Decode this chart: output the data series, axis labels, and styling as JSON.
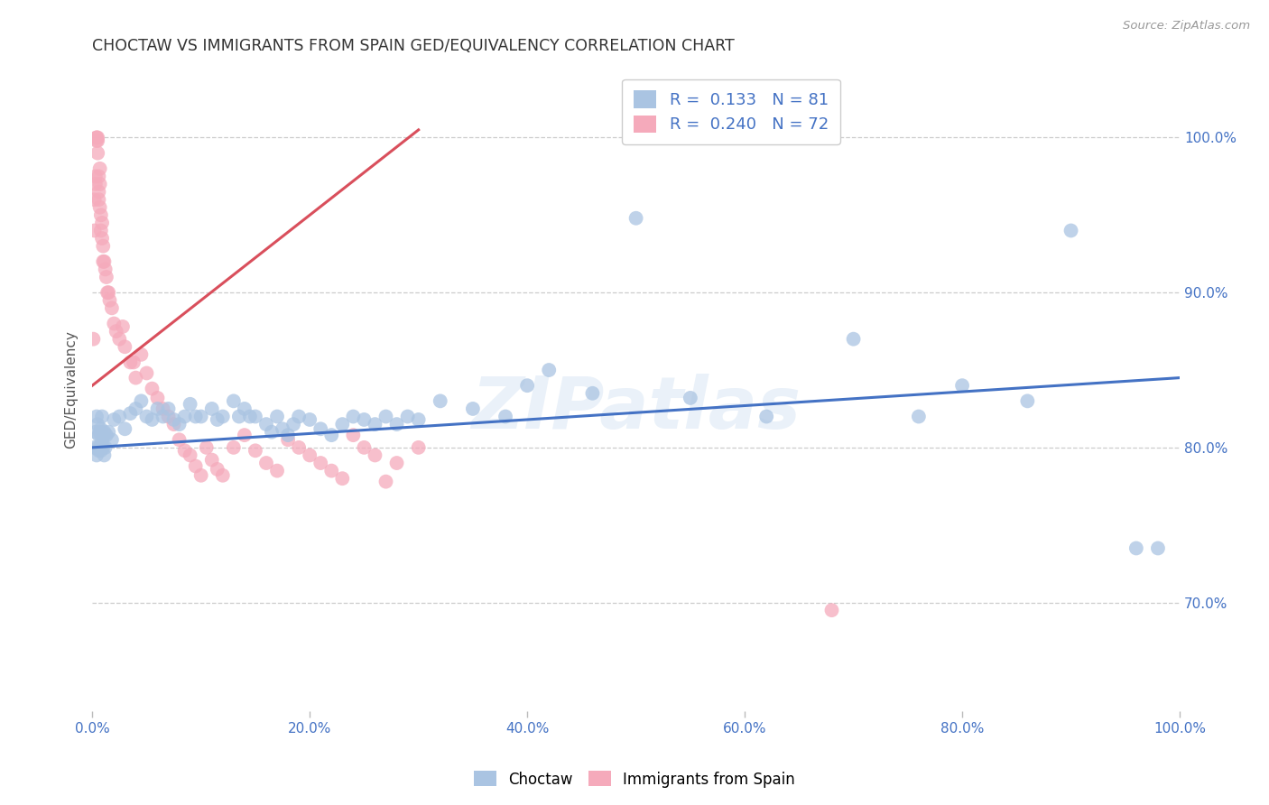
{
  "title": "CHOCTAW VS IMMIGRANTS FROM SPAIN GED/EQUIVALENCY CORRELATION CHART",
  "source": "Source: ZipAtlas.com",
  "ylabel": "GED/Equivalency",
  "x_min": 0.0,
  "x_max": 1.0,
  "y_min": 0.63,
  "y_max": 1.045,
  "blue_R": 0.133,
  "blue_N": 81,
  "pink_R": 0.24,
  "pink_N": 72,
  "blue_color": "#aac4e2",
  "pink_color": "#f5aabb",
  "blue_line_color": "#4472c4",
  "pink_line_color": "#d94f5c",
  "watermark": "ZIPatlas",
  "legend_label_blue": "Choctaw",
  "legend_label_pink": "Immigrants from Spain",
  "blue_x": [
    0.002,
    0.003,
    0.004,
    0.004,
    0.005,
    0.005,
    0.006,
    0.006,
    0.007,
    0.007,
    0.008,
    0.008,
    0.009,
    0.009,
    0.01,
    0.01,
    0.011,
    0.011,
    0.012,
    0.013,
    0.015,
    0.018,
    0.02,
    0.025,
    0.03,
    0.035,
    0.04,
    0.045,
    0.05,
    0.055,
    0.06,
    0.065,
    0.07,
    0.075,
    0.08,
    0.085,
    0.09,
    0.095,
    0.1,
    0.11,
    0.115,
    0.12,
    0.13,
    0.135,
    0.14,
    0.145,
    0.15,
    0.16,
    0.165,
    0.17,
    0.175,
    0.18,
    0.185,
    0.19,
    0.2,
    0.21,
    0.22,
    0.23,
    0.24,
    0.25,
    0.26,
    0.27,
    0.28,
    0.29,
    0.3,
    0.32,
    0.35,
    0.38,
    0.4,
    0.42,
    0.46,
    0.5,
    0.55,
    0.62,
    0.7,
    0.76,
    0.8,
    0.86,
    0.9,
    0.96,
    0.98
  ],
  "blue_y": [
    0.8,
    0.81,
    0.795,
    0.82,
    0.8,
    0.815,
    0.808,
    0.798,
    0.8,
    0.81,
    0.798,
    0.812,
    0.805,
    0.82,
    0.807,
    0.8,
    0.81,
    0.795,
    0.8,
    0.808,
    0.81,
    0.805,
    0.818,
    0.82,
    0.812,
    0.822,
    0.825,
    0.83,
    0.82,
    0.818,
    0.825,
    0.82,
    0.825,
    0.818,
    0.815,
    0.82,
    0.828,
    0.82,
    0.82,
    0.825,
    0.818,
    0.82,
    0.83,
    0.82,
    0.825,
    0.82,
    0.82,
    0.815,
    0.81,
    0.82,
    0.812,
    0.808,
    0.815,
    0.82,
    0.818,
    0.812,
    0.808,
    0.815,
    0.82,
    0.818,
    0.815,
    0.82,
    0.815,
    0.82,
    0.818,
    0.83,
    0.825,
    0.82,
    0.84,
    0.85,
    0.835,
    0.948,
    0.832,
    0.82,
    0.87,
    0.82,
    0.84,
    0.83,
    0.94,
    0.735,
    0.735
  ],
  "pink_x": [
    0.001,
    0.002,
    0.002,
    0.003,
    0.003,
    0.004,
    0.004,
    0.004,
    0.005,
    0.005,
    0.005,
    0.006,
    0.006,
    0.006,
    0.007,
    0.007,
    0.007,
    0.008,
    0.008,
    0.009,
    0.009,
    0.01,
    0.01,
    0.011,
    0.012,
    0.013,
    0.014,
    0.015,
    0.016,
    0.018,
    0.02,
    0.022,
    0.025,
    0.028,
    0.03,
    0.035,
    0.038,
    0.04,
    0.045,
    0.05,
    0.055,
    0.06,
    0.065,
    0.07,
    0.075,
    0.08,
    0.085,
    0.09,
    0.095,
    0.1,
    0.105,
    0.11,
    0.115,
    0.12,
    0.13,
    0.14,
    0.15,
    0.16,
    0.17,
    0.18,
    0.19,
    0.2,
    0.21,
    0.22,
    0.23,
    0.24,
    0.25,
    0.26,
    0.27,
    0.28,
    0.3,
    0.68
  ],
  "pink_y": [
    0.87,
    0.96,
    0.94,
    0.97,
    0.975,
    1.0,
    1.0,
    0.998,
    1.0,
    0.998,
    0.99,
    0.975,
    0.965,
    0.96,
    0.955,
    0.97,
    0.98,
    0.94,
    0.95,
    0.945,
    0.935,
    0.93,
    0.92,
    0.92,
    0.915,
    0.91,
    0.9,
    0.9,
    0.895,
    0.89,
    0.88,
    0.875,
    0.87,
    0.878,
    0.865,
    0.855,
    0.855,
    0.845,
    0.86,
    0.848,
    0.838,
    0.832,
    0.825,
    0.82,
    0.815,
    0.805,
    0.798,
    0.795,
    0.788,
    0.782,
    0.8,
    0.792,
    0.786,
    0.782,
    0.8,
    0.808,
    0.798,
    0.79,
    0.785,
    0.805,
    0.8,
    0.795,
    0.79,
    0.785,
    0.78,
    0.808,
    0.8,
    0.795,
    0.778,
    0.79,
    0.8,
    0.695
  ],
  "blue_trend_x": [
    0.0,
    1.0
  ],
  "blue_trend_y": [
    0.8,
    0.845
  ],
  "pink_trend_x": [
    0.0,
    0.3
  ],
  "pink_trend_y": [
    0.84,
    1.005
  ],
  "x_ticks": [
    0.0,
    0.2,
    0.4,
    0.6,
    0.8,
    1.0
  ],
  "y_ticks": [
    0.7,
    0.8,
    0.9,
    1.0
  ]
}
